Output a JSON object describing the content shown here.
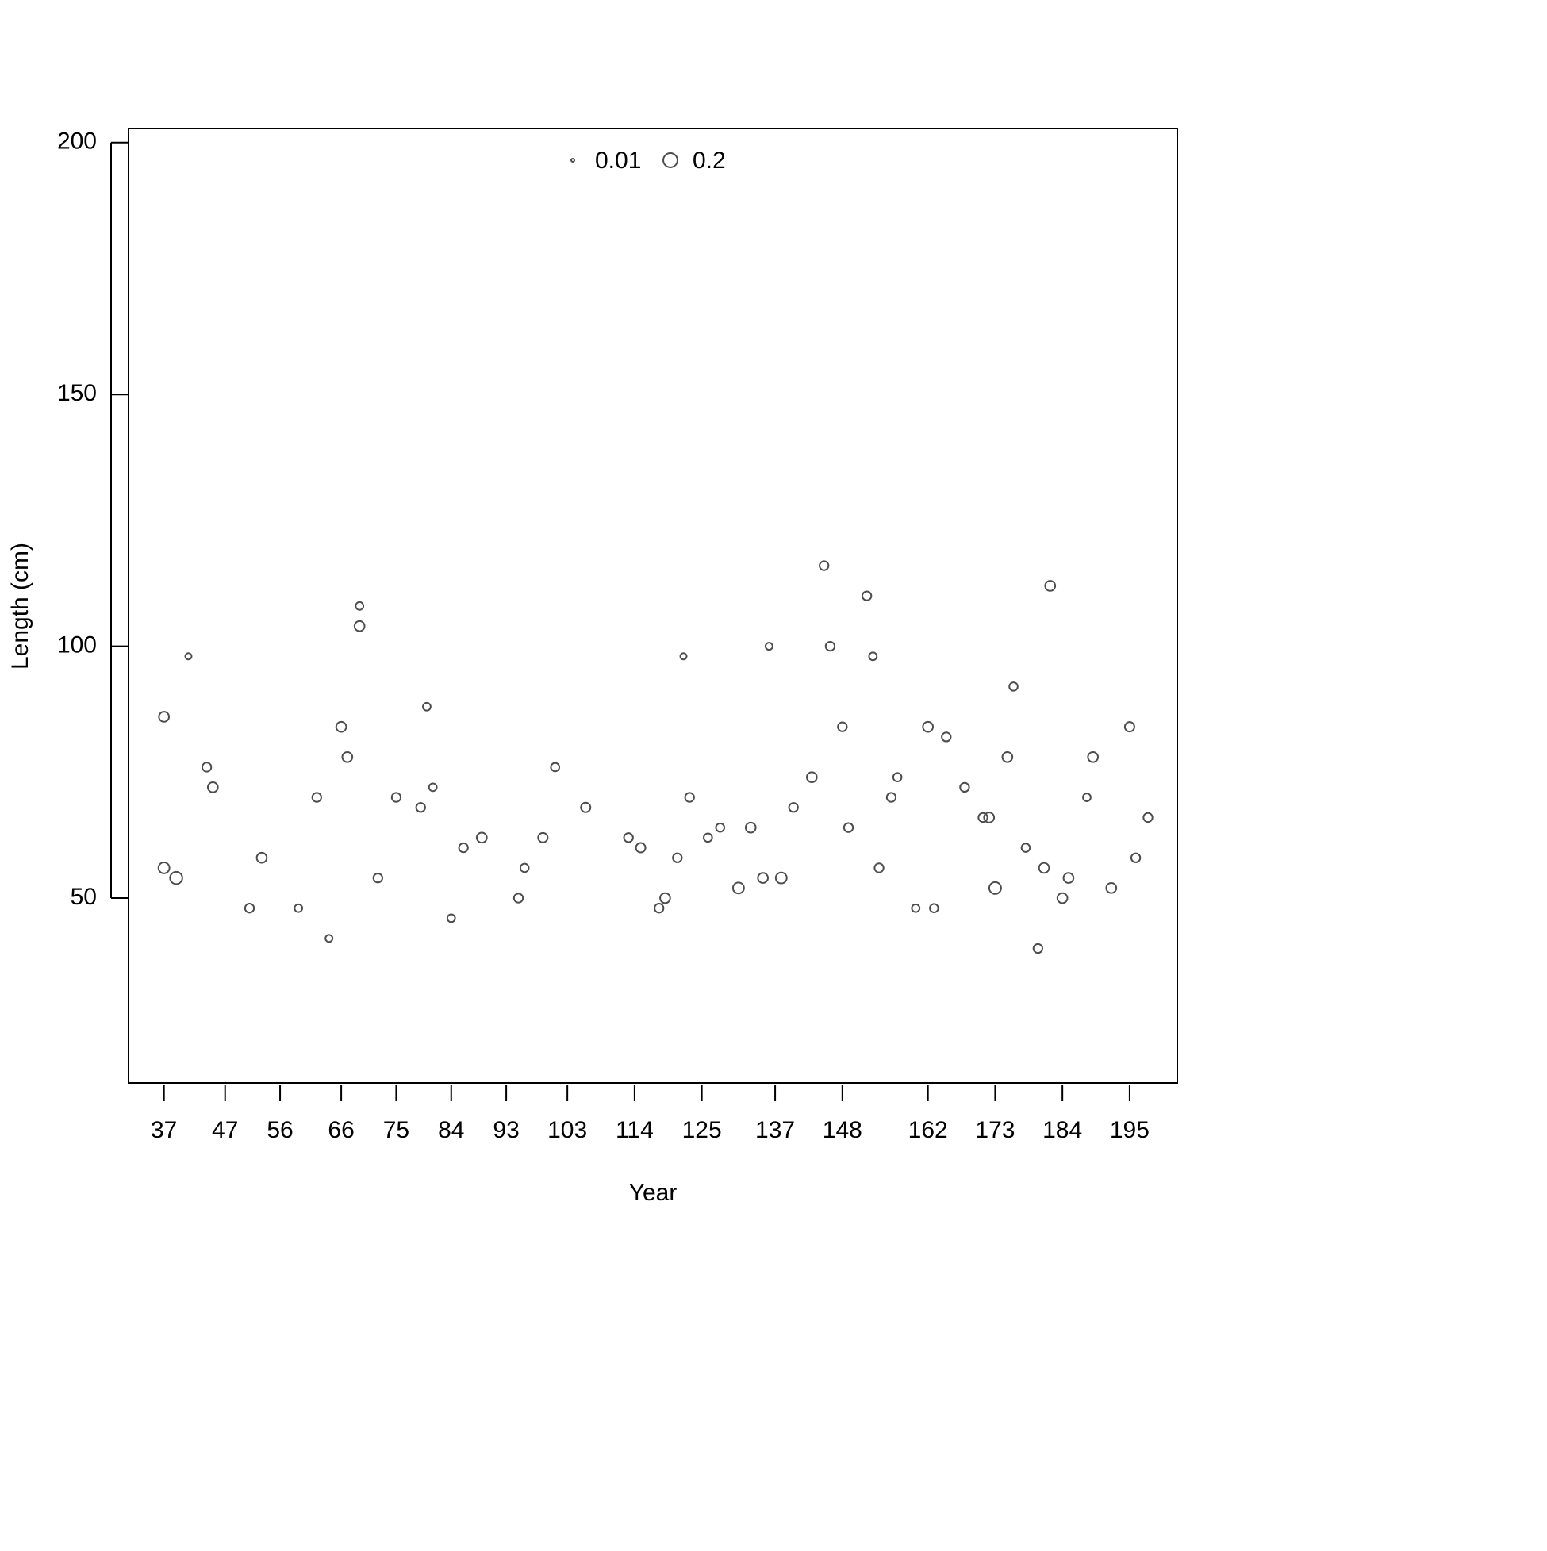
{
  "chart_data": {
    "type": "scatter",
    "xlabel": "Year",
    "ylabel": "Length (cm)",
    "x": [
      37,
      37,
      39,
      41,
      44,
      45,
      51,
      53,
      59,
      62,
      64,
      66,
      67,
      69,
      69,
      72,
      75,
      79,
      80,
      81,
      84,
      86,
      89,
      95,
      96,
      99,
      101,
      106,
      113,
      115,
      118,
      119,
      121,
      122,
      123,
      126,
      128,
      131,
      133,
      135,
      136,
      138,
      140,
      143,
      145,
      146,
      148,
      149,
      152,
      153,
      154,
      156,
      157,
      160,
      162,
      163,
      165,
      168,
      171,
      172,
      173,
      175,
      176,
      178,
      180,
      181,
      182,
      184,
      185,
      188,
      189,
      192,
      195,
      196,
      198
    ],
    "y": [
      86,
      56,
      54,
      98,
      76,
      72,
      48,
      58,
      48,
      70,
      42,
      84,
      78,
      104,
      108,
      54,
      70,
      68,
      88,
      72,
      46,
      60,
      62,
      50,
      56,
      62,
      76,
      68,
      62,
      60,
      48,
      50,
      58,
      98,
      70,
      62,
      64,
      52,
      64,
      54,
      100,
      54,
      68,
      74,
      116,
      100,
      84,
      64,
      110,
      98,
      56,
      70,
      74,
      48,
      84,
      48,
      82,
      72,
      66,
      66,
      52,
      78,
      92,
      60,
      40,
      56,
      112,
      50,
      54,
      70,
      78,
      52,
      84,
      58,
      66
    ],
    "sizes": [
      0.1,
      0.12,
      0.15,
      0.04,
      0.08,
      0.1,
      0.08,
      0.1,
      0.06,
      0.08,
      0.05,
      0.1,
      0.1,
      0.1,
      0.06,
      0.08,
      0.08,
      0.08,
      0.06,
      0.06,
      0.06,
      0.08,
      0.1,
      0.08,
      0.07,
      0.09,
      0.07,
      0.09,
      0.08,
      0.09,
      0.08,
      0.1,
      0.08,
      0.04,
      0.08,
      0.07,
      0.07,
      0.12,
      0.1,
      0.1,
      0.05,
      0.12,
      0.08,
      0.1,
      0.08,
      0.08,
      0.08,
      0.08,
      0.08,
      0.06,
      0.08,
      0.08,
      0.07,
      0.06,
      0.1,
      0.07,
      0.08,
      0.08,
      0.08,
      0.1,
      0.14,
      0.1,
      0.07,
      0.07,
      0.08,
      0.1,
      0.1,
      0.1,
      0.1,
      0.06,
      0.1,
      0.1,
      0.09,
      0.08,
      0.08
    ],
    "xlim": [
      31.2,
      202.8
    ],
    "ylim": [
      13.3,
      202.8
    ],
    "xticks": [
      37,
      47,
      56,
      66,
      75,
      84,
      93,
      103,
      114,
      125,
      137,
      148,
      162,
      173,
      184,
      195
    ],
    "yticks": [
      50,
      100,
      150,
      200
    ],
    "legend_sizes": [
      0.01,
      0.2
    ],
    "color": "#4d4d4d"
  }
}
